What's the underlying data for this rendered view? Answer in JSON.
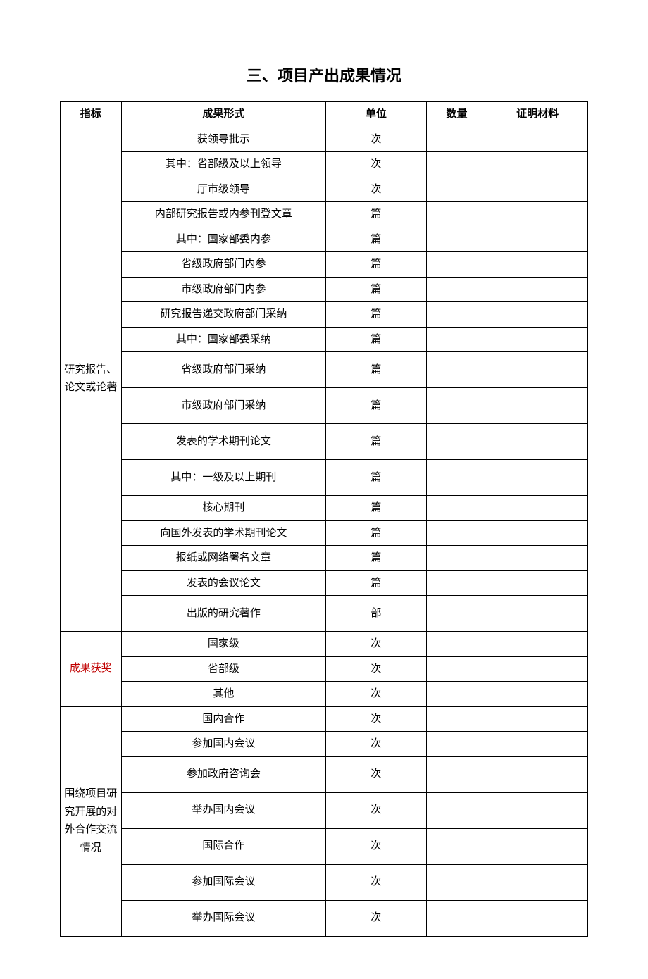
{
  "title": "三、项目产出成果情况",
  "header": {
    "c1": "指标",
    "c2": "成果形式",
    "c3": "单位",
    "c4": "数量",
    "c5": "证明材料"
  },
  "groups": [
    {
      "label": "研究报告、论文或论著",
      "label_red": false,
      "rows": [
        {
          "form": "获领导批示",
          "unit": "次",
          "qty": "",
          "proof": ""
        },
        {
          "form": "其中：省部级及以上领导",
          "unit": "次",
          "qty": "",
          "proof": ""
        },
        {
          "form": "厅市级领导",
          "unit": "次",
          "qty": "",
          "proof": ""
        },
        {
          "form": "内部研究报告或内参刊登文章",
          "unit": "篇",
          "qty": "",
          "proof": ""
        },
        {
          "form": "其中：国家部委内参",
          "unit": "篇",
          "qty": "",
          "proof": ""
        },
        {
          "form": "省级政府部门内参",
          "unit": "篇",
          "qty": "",
          "proof": ""
        },
        {
          "form": "市级政府部门内参",
          "unit": "篇",
          "qty": "",
          "proof": ""
        },
        {
          "form": "研究报告递交政府部门采纳",
          "unit": "篇",
          "qty": "",
          "proof": ""
        },
        {
          "form": "其中：国家部委采纳",
          "unit": "篇",
          "qty": "",
          "proof": ""
        },
        {
          "form": "省级政府部门采纳",
          "unit": "篇",
          "qty": "",
          "proof": ""
        },
        {
          "form": "市级政府部门采纳",
          "unit": "篇",
          "qty": "",
          "proof": ""
        },
        {
          "form": "发表的学术期刊论文",
          "unit": "篇",
          "qty": "",
          "proof": ""
        },
        {
          "form": "其中：一级及以上期刊",
          "unit": "篇",
          "qty": "",
          "proof": ""
        },
        {
          "form": "核心期刊",
          "unit": "篇",
          "qty": "",
          "proof": ""
        },
        {
          "form": "向国外发表的学术期刊论文",
          "unit": "篇",
          "qty": "",
          "proof": ""
        },
        {
          "form": "报纸或网络署名文章",
          "unit": "篇",
          "qty": "",
          "proof": ""
        },
        {
          "form": "发表的会议论文",
          "unit": "篇",
          "qty": "",
          "proof": ""
        },
        {
          "form": "出版的研究著作",
          "unit": "部",
          "qty": "",
          "proof": ""
        }
      ]
    },
    {
      "label": "成果获奖",
      "label_red": true,
      "rows": [
        {
          "form": "国家级",
          "unit": "次",
          "qty": "",
          "proof": ""
        },
        {
          "form": "省部级",
          "unit": "次",
          "qty": "",
          "proof": ""
        },
        {
          "form": "其他",
          "unit": "次",
          "qty": "",
          "proof": ""
        }
      ]
    },
    {
      "label": "围绕项目研究开展的对外合作交流情况",
      "label_red": false,
      "rows": [
        {
          "form": "国内合作",
          "unit": "次",
          "qty": "",
          "proof": ""
        },
        {
          "form": "参加国内会议",
          "unit": "次",
          "qty": "",
          "proof": ""
        },
        {
          "form": "参加政府咨询会",
          "unit": "次",
          "qty": "",
          "proof": ""
        },
        {
          "form": "举办国内会议",
          "unit": "次",
          "qty": "",
          "proof": ""
        },
        {
          "form": "国际合作",
          "unit": "次",
          "qty": "",
          "proof": ""
        },
        {
          "form": "参加国际会议",
          "unit": "次",
          "qty": "",
          "proof": ""
        },
        {
          "form": "举办国际会议",
          "unit": "次",
          "qty": "",
          "proof": ""
        }
      ]
    }
  ]
}
